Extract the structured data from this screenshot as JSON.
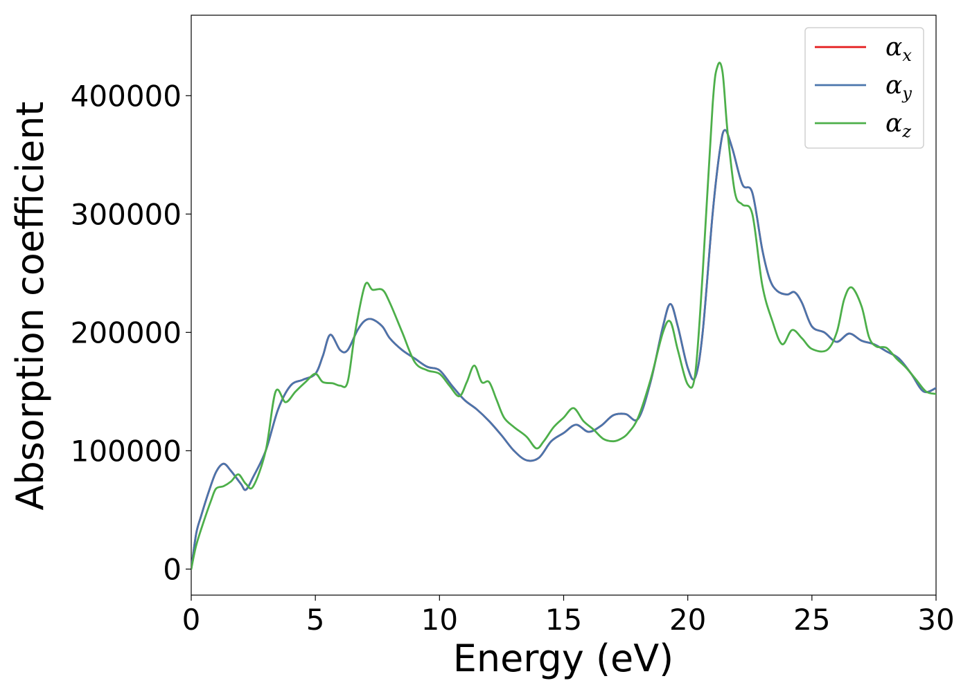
{
  "chart_data": {
    "type": "line",
    "title": "",
    "xlabel": "Energy (eV)",
    "ylabel": "Absorption coefficient",
    "xlim": [
      0,
      30
    ],
    "ylim": [
      -22000,
      468000
    ],
    "xticks": [
      0,
      5,
      10,
      15,
      20,
      25,
      30
    ],
    "yticks": [
      0,
      100000,
      200000,
      300000,
      400000
    ],
    "grid": false,
    "legend_position": "top-right",
    "series": [
      {
        "name": "αx",
        "legend_base": "α",
        "legend_sub": "x",
        "color": "#e41a1c",
        "x": [
          0,
          0.2,
          0.4,
          0.7,
          1.0,
          1.3,
          1.6,
          2.0,
          2.2,
          2.5,
          3.0,
          3.5,
          4.0,
          4.5,
          5.0,
          5.3,
          5.6,
          6.0,
          6.3,
          6.7,
          7.0,
          7.3,
          7.7,
          8.0,
          8.5,
          9.0,
          9.5,
          10.0,
          10.5,
          11.0,
          11.5,
          12.0,
          12.5,
          13.0,
          13.5,
          14.0,
          14.5,
          15.0,
          15.5,
          16.0,
          16.5,
          17.0,
          17.5,
          18.0,
          18.5,
          19.0,
          19.3,
          19.6,
          20.0,
          20.3,
          20.6,
          21.0,
          21.3,
          21.5,
          21.8,
          22.2,
          22.6,
          23.0,
          23.3,
          23.6,
          24.0,
          24.3,
          24.6,
          25.0,
          25.5,
          26.0,
          26.5,
          27.0,
          27.5,
          28.0,
          28.5,
          29.0,
          29.5,
          30.0
        ],
        "y": [
          0,
          30000,
          45000,
          65000,
          82000,
          89000,
          83000,
          72000,
          67000,
          78000,
          100000,
          135000,
          155000,
          160000,
          165000,
          180000,
          198000,
          185000,
          185000,
          202000,
          210000,
          211000,
          205000,
          195000,
          185000,
          178000,
          171000,
          168000,
          155000,
          143000,
          135000,
          125000,
          113000,
          100000,
          92000,
          94000,
          108000,
          115000,
          122000,
          116000,
          121000,
          130000,
          131000,
          127000,
          158000,
          205000,
          224000,
          205000,
          170000,
          162000,
          200000,
          300000,
          355000,
          371000,
          355000,
          325000,
          318000,
          270000,
          245000,
          235000,
          232000,
          234000,
          225000,
          205000,
          200000,
          192000,
          199000,
          193000,
          190000,
          184000,
          178000,
          165000,
          150000,
          153000
        ]
      },
      {
        "name": "αy",
        "legend_base": "α",
        "legend_sub": "y",
        "color": "#4a75ac",
        "x": [
          0,
          0.2,
          0.4,
          0.7,
          1.0,
          1.3,
          1.6,
          2.0,
          2.2,
          2.5,
          3.0,
          3.5,
          4.0,
          4.5,
          5.0,
          5.3,
          5.6,
          6.0,
          6.3,
          6.7,
          7.0,
          7.3,
          7.7,
          8.0,
          8.5,
          9.0,
          9.5,
          10.0,
          10.5,
          11.0,
          11.5,
          12.0,
          12.5,
          13.0,
          13.5,
          14.0,
          14.5,
          15.0,
          15.5,
          16.0,
          16.5,
          17.0,
          17.5,
          18.0,
          18.5,
          19.0,
          19.3,
          19.6,
          20.0,
          20.3,
          20.6,
          21.0,
          21.3,
          21.5,
          21.8,
          22.2,
          22.6,
          23.0,
          23.3,
          23.6,
          24.0,
          24.3,
          24.6,
          25.0,
          25.5,
          26.0,
          26.5,
          27.0,
          27.5,
          28.0,
          28.5,
          29.0,
          29.5,
          30.0
        ],
        "y": [
          0,
          30000,
          45000,
          65000,
          82000,
          89000,
          83000,
          72000,
          67000,
          78000,
          100000,
          135000,
          155000,
          160000,
          165000,
          180000,
          198000,
          185000,
          185000,
          202000,
          210000,
          211000,
          205000,
          195000,
          185000,
          178000,
          171000,
          168000,
          155000,
          143000,
          135000,
          125000,
          113000,
          100000,
          92000,
          94000,
          108000,
          115000,
          122000,
          116000,
          121000,
          130000,
          131000,
          127000,
          158000,
          205000,
          224000,
          205000,
          170000,
          162000,
          200000,
          300000,
          355000,
          371000,
          355000,
          325000,
          318000,
          270000,
          245000,
          235000,
          232000,
          234000,
          225000,
          205000,
          200000,
          192000,
          199000,
          193000,
          190000,
          184000,
          178000,
          165000,
          150000,
          153000
        ]
      },
      {
        "name": "αz",
        "legend_base": "α",
        "legend_sub": "z",
        "color": "#4daf4a",
        "x": [
          0,
          0.2,
          0.5,
          0.8,
          1.0,
          1.3,
          1.6,
          1.9,
          2.2,
          2.5,
          3.0,
          3.4,
          3.8,
          4.2,
          4.6,
          5.0,
          5.3,
          5.7,
          6.0,
          6.3,
          6.6,
          7.0,
          7.3,
          7.7,
          8.0,
          8.5,
          9.0,
          9.5,
          10.0,
          10.4,
          10.8,
          11.1,
          11.4,
          11.7,
          12.0,
          12.3,
          12.6,
          13.0,
          13.5,
          13.9,
          14.2,
          14.6,
          15.0,
          15.4,
          15.8,
          16.2,
          16.6,
          17.0,
          17.3,
          17.6,
          18.0,
          18.5,
          19.0,
          19.3,
          19.6,
          20.0,
          20.3,
          20.6,
          21.0,
          21.2,
          21.4,
          21.6,
          21.9,
          22.2,
          22.6,
          23.0,
          23.4,
          23.8,
          24.2,
          24.6,
          25.0,
          25.6,
          26.0,
          26.3,
          26.6,
          27.0,
          27.3,
          27.6,
          28.0,
          28.4,
          28.8,
          29.2,
          29.6,
          30.0
        ],
        "y": [
          0,
          20000,
          40000,
          58000,
          68000,
          70000,
          74000,
          80000,
          72000,
          70000,
          100000,
          150000,
          141000,
          150000,
          158000,
          165000,
          158000,
          157000,
          155000,
          158000,
          200000,
          240000,
          236000,
          236000,
          225000,
          200000,
          175000,
          168000,
          165000,
          155000,
          146000,
          158000,
          172000,
          158000,
          158000,
          143000,
          128000,
          120000,
          112000,
          102000,
          108000,
          120000,
          128000,
          136000,
          125000,
          118000,
          110000,
          108000,
          110000,
          115000,
          128000,
          160000,
          200000,
          209000,
          185000,
          156000,
          165000,
          250000,
          392000,
          425000,
          420000,
          370000,
          318000,
          308000,
          300000,
          240000,
          210000,
          190000,
          202000,
          195000,
          186000,
          185000,
          200000,
          228000,
          238000,
          222000,
          196000,
          188000,
          187000,
          178000,
          170000,
          160000,
          150000,
          148000
        ]
      }
    ]
  }
}
